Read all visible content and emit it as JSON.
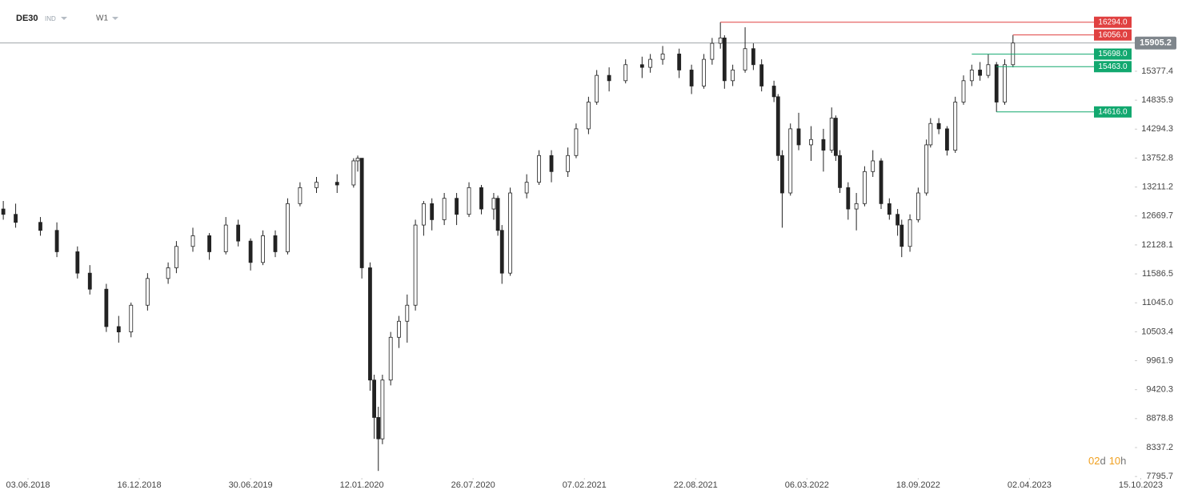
{
  "chart_data": {
    "type": "candlestick",
    "symbol": "DE30",
    "market": "IND",
    "interval": "W1",
    "countdown": {
      "days": "02",
      "days_unit": "d",
      "hours": "10",
      "hours_unit": "h"
    },
    "xlim": [
      -6.8,
      267
    ],
    "xticks": [
      {
        "value": 0,
        "label": "03.06.2018"
      },
      {
        "value": 27,
        "label": "16.12.2018"
      },
      {
        "value": 54,
        "label": "30.06.2019"
      },
      {
        "value": 81,
        "label": "12.01.2020"
      },
      {
        "value": 108,
        "label": "26.07.2020"
      },
      {
        "value": 135,
        "label": "07.02.2021"
      },
      {
        "value": 162,
        "label": "22.08.2021"
      },
      {
        "value": 189,
        "label": "06.03.2022"
      },
      {
        "value": 216,
        "label": "18.09.2022"
      },
      {
        "value": 243,
        "label": "02.04.2023"
      },
      {
        "value": 270,
        "label": "15.10.2023"
      }
    ],
    "ylim": [
      7723,
      16710
    ],
    "yticks": [
      15377.4,
      14835.9,
      14294.3,
      13752.8,
      13211.2,
      12669.7,
      12128.1,
      11586.5,
      {
        "value": 11045.0,
        "label": "11045.0"
      },
      10503.4,
      9961.9,
      9420.3,
      8878.8,
      8337.2,
      7795.7
    ],
    "up_color": "#ffffff",
    "down_color": "#222222",
    "x": [
      -6,
      -3,
      3,
      7,
      12,
      15,
      19,
      22,
      25,
      29,
      34,
      36,
      40,
      44,
      48,
      51,
      54,
      57,
      60,
      63,
      66,
      70,
      75,
      79,
      80,
      81,
      83,
      84,
      85,
      86,
      88,
      90,
      92,
      94,
      96,
      98,
      101,
      104,
      107,
      110,
      113,
      114,
      115,
      117,
      121,
      124,
      127,
      131,
      133,
      136,
      138,
      141,
      145,
      149,
      151,
      154,
      158,
      161,
      164,
      166,
      168,
      169,
      171,
      174,
      176,
      178,
      181,
      182,
      183,
      185,
      187,
      190,
      193,
      195,
      196,
      197,
      199,
      201,
      203,
      205,
      207,
      209,
      211,
      212,
      214,
      216,
      218,
      219,
      221,
      223,
      225,
      227,
      229,
      231,
      233,
      235,
      237,
      239
    ],
    "open": [
      12800,
      12700,
      12550,
      12400,
      12000,
      11600,
      11300,
      10600,
      10500,
      11000,
      11500,
      11700,
      12100,
      12300,
      12000,
      12500,
      12200,
      11800,
      12300,
      12000,
      12900,
      13200,
      13300,
      13250,
      13700,
      13750,
      11700,
      9600,
      8900,
      8500,
      9600,
      10400,
      10700,
      11000,
      12500,
      12900,
      12600,
      13000,
      12700,
      13200,
      12800,
      13000,
      12400,
      11600,
      13100,
      13300,
      13800,
      13500,
      13800,
      14300,
      14800,
      15300,
      15200,
      15500,
      15450,
      15600,
      15700,
      15400,
      15100,
      15600,
      15900,
      16000,
      15200,
      15400,
      15800,
      15500,
      15100,
      14900,
      13800,
      13100,
      14300,
      14000,
      14100,
      13900,
      14500,
      13800,
      13200,
      12800,
      12900,
      13500,
      13700,
      12900,
      12700,
      12500,
      12100,
      12600,
      13100,
      14000,
      14400,
      14300,
      13900,
      14800,
      15200,
      15400,
      15300,
      15500,
      14800,
      15500
    ],
    "high": [
      12950,
      12900,
      12650,
      12550,
      12100,
      11750,
      11400,
      10800,
      11050,
      11600,
      11800,
      12200,
      12450,
      12350,
      12650,
      12600,
      12250,
      12400,
      12400,
      13000,
      13300,
      13400,
      13450,
      13750,
      13800,
      13750,
      11800,
      9700,
      9100,
      9700,
      10500,
      10800,
      11200,
      12600,
      12950,
      13000,
      13100,
      13100,
      13300,
      13250,
      13100,
      13050,
      12500,
      13200,
      13450,
      13900,
      13900,
      13950,
      14400,
      14900,
      15400,
      15450,
      15600,
      15650,
      15700,
      15850,
      15800,
      15500,
      15700,
      16000,
      16294,
      16050,
      15500,
      16200,
      15900,
      15600,
      15200,
      14950,
      13900,
      14400,
      14600,
      14350,
      14300,
      14700,
      14550,
      13900,
      13300,
      13100,
      13600,
      13900,
      13750,
      13000,
      12800,
      12600,
      12700,
      13200,
      14100,
      14500,
      14500,
      14350,
      14900,
      15300,
      15500,
      15550,
      15698,
      15550,
      15600,
      16056
    ],
    "low": [
      12600,
      12450,
      12300,
      11900,
      11500,
      11200,
      10500,
      10300,
      10400,
      10900,
      11400,
      11600,
      12000,
      11850,
      11950,
      12100,
      11650,
      11750,
      11900,
      11950,
      12850,
      13100,
      13100,
      13200,
      13500,
      11500,
      9400,
      8500,
      7900,
      8400,
      9500,
      10200,
      10300,
      10900,
      12300,
      12400,
      12500,
      12500,
      12650,
      12700,
      12600,
      12300,
      11400,
      11550,
      13000,
      13250,
      13300,
      13400,
      13750,
      14200,
      14750,
      15000,
      15150,
      15250,
      15350,
      15500,
      15250,
      14950,
      15050,
      15500,
      15800,
      15050,
      15100,
      15350,
      15400,
      15000,
      14800,
      13700,
      12450,
      13050,
      13900,
      13700,
      13500,
      13850,
      13700,
      13100,
      12600,
      12400,
      12850,
      13400,
      12800,
      12600,
      12300,
      11900,
      12000,
      12550,
      13050,
      13950,
      14200,
      13800,
      13850,
      14750,
      15100,
      15200,
      15250,
      14616,
      14750,
      15450
    ],
    "close": [
      12700,
      12550,
      12400,
      12000,
      11600,
      11300,
      10600,
      10500,
      11000,
      11500,
      11700,
      12100,
      12300,
      12000,
      12500,
      12200,
      11800,
      12300,
      12000,
      12900,
      13200,
      13300,
      13250,
      13700,
      13750,
      11700,
      9600,
      8900,
      8500,
      9600,
      10400,
      10700,
      11000,
      12500,
      12900,
      12600,
      13000,
      12700,
      13200,
      12800,
      13000,
      12400,
      11600,
      13100,
      13300,
      13800,
      13500,
      13800,
      14300,
      14800,
      15300,
      15200,
      15500,
      15450,
      15600,
      15700,
      15400,
      15100,
      15600,
      15900,
      16000,
      15200,
      15400,
      15800,
      15500,
      15100,
      14900,
      13800,
      13100,
      14300,
      14000,
      14100,
      13900,
      14500,
      13800,
      13200,
      12800,
      12900,
      13500,
      13700,
      12900,
      12700,
      12500,
      12100,
      12600,
      13100,
      14000,
      14400,
      14300,
      13900,
      14800,
      15200,
      15400,
      15300,
      15500,
      14800,
      15500,
      15905.2
    ],
    "current_price": 15905.2,
    "current_color": "#7f868c",
    "levels": [
      {
        "value": 16294,
        "label": "16294.0",
        "color": "#e04040",
        "x": 168
      },
      {
        "value": 16056,
        "label": "16056.0",
        "color": "#e04040",
        "x": 239
      },
      {
        "value": 15698,
        "label": "15698.0",
        "color": "#12a86f",
        "x": 229
      },
      {
        "value": 15463,
        "label": "15463.0",
        "color": "#12a86f",
        "x": 235
      },
      {
        "value": 14616,
        "label": "14616.0",
        "color": "#12a86f",
        "x": 235
      }
    ]
  }
}
